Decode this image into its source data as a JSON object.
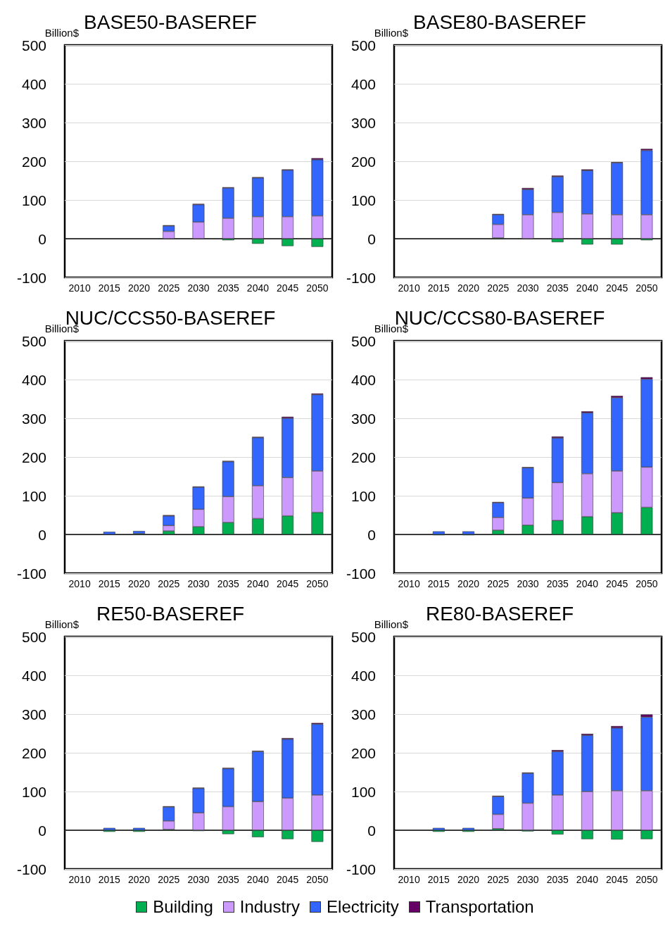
{
  "chart_data": [
    {
      "type": "bar",
      "title": "BASE50-BASEREF",
      "ylabel": "Billion$",
      "stacked": true,
      "categories": [
        "2010",
        "2015",
        "2020",
        "2025",
        "2030",
        "2035",
        "2040",
        "2045",
        "2050"
      ],
      "ylim": [
        -100,
        500
      ],
      "yticks": [
        -100,
        0,
        100,
        200,
        300,
        400,
        500
      ],
      "grid": "y",
      "series": [
        {
          "color": "#00b050",
          "values": [
            null,
            null,
            null,
            null,
            null,
            -4,
            -13,
            -19,
            -21
          ]
        },
        {
          "color": "#cc99ff",
          "values": [
            null,
            null,
            null,
            19,
            43,
            53,
            57,
            57,
            59
          ]
        },
        {
          "color": "#3366ff",
          "values": [
            null,
            null,
            null,
            14,
            45,
            78,
            100,
            120,
            145
          ]
        },
        {
          "color": "#660066",
          "values": [
            null,
            null,
            null,
            2,
            2,
            2,
            2,
            2,
            4
          ]
        }
      ]
    },
    {
      "type": "bar",
      "title": "BASE80-BASEREF",
      "ylabel": "Billion$",
      "stacked": true,
      "categories": [
        "2010",
        "2015",
        "2020",
        "2025",
        "2030",
        "2035",
        "2040",
        "2045",
        "2050"
      ],
      "ylim": [
        -100,
        500
      ],
      "yticks": [
        -100,
        0,
        100,
        200,
        300,
        400,
        500
      ],
      "grid": "y",
      "series": [
        {
          "color": "#00b050",
          "values": [
            null,
            null,
            null,
            2,
            null,
            -9,
            -15,
            -15,
            -4
          ]
        },
        {
          "color": "#cc99ff",
          "values": [
            null,
            null,
            null,
            35,
            62,
            68,
            64,
            62,
            62
          ]
        },
        {
          "color": "#3366ff",
          "values": [
            null,
            null,
            null,
            25,
            65,
            92,
            112,
            134,
            166
          ]
        },
        {
          "color": "#660066",
          "values": [
            null,
            null,
            null,
            2,
            4,
            3,
            3,
            2,
            4
          ]
        }
      ]
    },
    {
      "type": "bar",
      "title": "NUC/CCS50-BASEREF",
      "ylabel": "Billion$",
      "stacked": true,
      "categories": [
        "2010",
        "2015",
        "2020",
        "2025",
        "2030",
        "2035",
        "2040",
        "2045",
        "2050"
      ],
      "ylim": [
        -100,
        500
      ],
      "yticks": [
        -100,
        0,
        100,
        200,
        300,
        400,
        500
      ],
      "grid": "y",
      "series": [
        {
          "color": "#00b050",
          "values": [
            null,
            null,
            2,
            9,
            20,
            31,
            41,
            48,
            57
          ]
        },
        {
          "color": "#cc99ff",
          "values": [
            null,
            null,
            null,
            14,
            45,
            67,
            85,
            99,
            107
          ]
        },
        {
          "color": "#3366ff",
          "values": [
            null,
            7,
            7,
            25,
            57,
            90,
            124,
            153,
            197
          ]
        },
        {
          "color": "#660066",
          "values": [
            null,
            null,
            null,
            2,
            2,
            2,
            2,
            4,
            3
          ]
        }
      ]
    },
    {
      "type": "bar",
      "title": "NUC/CCS80-BASEREF",
      "ylabel": "Billion$",
      "stacked": true,
      "categories": [
        "2010",
        "2015",
        "2020",
        "2025",
        "2030",
        "2035",
        "2040",
        "2045",
        "2050"
      ],
      "ylim": [
        -100,
        500
      ],
      "yticks": [
        -100,
        0,
        100,
        200,
        300,
        400,
        500
      ],
      "grid": "y",
      "series": [
        {
          "color": "#00b050",
          "values": [
            null,
            -2,
            -2,
            11,
            24,
            36,
            46,
            56,
            70
          ]
        },
        {
          "color": "#cc99ff",
          "values": [
            null,
            null,
            null,
            33,
            70,
            98,
            111,
            108,
            104
          ]
        },
        {
          "color": "#3366ff",
          "values": [
            null,
            8,
            8,
            38,
            78,
            115,
            157,
            189,
            227
          ]
        },
        {
          "color": "#660066",
          "values": [
            null,
            null,
            null,
            2,
            2,
            4,
            4,
            5,
            5
          ]
        }
      ]
    },
    {
      "type": "bar",
      "title": "RE50-BASEREF",
      "ylabel": "Billion$",
      "stacked": true,
      "categories": [
        "2010",
        "2015",
        "2020",
        "2025",
        "2030",
        "2035",
        "2040",
        "2045",
        "2050"
      ],
      "ylim": [
        -100,
        500
      ],
      "yticks": [
        -100,
        0,
        100,
        200,
        300,
        400,
        500
      ],
      "grid": "y",
      "series": [
        {
          "color": "#00b050",
          "values": [
            null,
            -4,
            -4,
            2,
            -2,
            -10,
            -18,
            -23,
            -30
          ]
        },
        {
          "color": "#cc99ff",
          "values": [
            null,
            null,
            null,
            22,
            45,
            61,
            74,
            83,
            91
          ]
        },
        {
          "color": "#3366ff",
          "values": [
            null,
            6,
            6,
            36,
            63,
            98,
            129,
            152,
            183
          ]
        },
        {
          "color": "#660066",
          "values": [
            null,
            null,
            null,
            2,
            2,
            2,
            2,
            3,
            3
          ]
        }
      ]
    },
    {
      "type": "bar",
      "title": "RE80-BASEREF",
      "ylabel": "Billion$",
      "stacked": true,
      "categories": [
        "2010",
        "2015",
        "2020",
        "2025",
        "2030",
        "2035",
        "2040",
        "2045",
        "2050"
      ],
      "ylim": [
        -100,
        500
      ],
      "yticks": [
        -100,
        0,
        100,
        200,
        300,
        400,
        500
      ],
      "grid": "y",
      "legend": "bottom",
      "series": [
        {
          "name": "Building",
          "color": "#00b050",
          "values": [
            null,
            -4,
            -4,
            4,
            -3,
            -11,
            -23,
            -24,
            -23
          ]
        },
        {
          "name": "Industry",
          "color": "#cc99ff",
          "values": [
            null,
            null,
            null,
            37,
            70,
            91,
            100,
            102,
            102
          ]
        },
        {
          "name": "Electricity",
          "color": "#3366ff",
          "values": [
            null,
            6,
            6,
            46,
            77,
            112,
            145,
            162,
            190
          ]
        },
        {
          "name": "Transportation",
          "color": "#660066",
          "values": [
            null,
            null,
            null,
            2,
            2,
            4,
            4,
            5,
            7
          ]
        }
      ]
    }
  ]
}
